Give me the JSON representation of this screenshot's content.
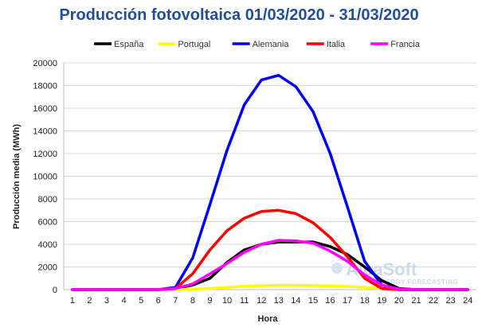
{
  "chart_data": {
    "type": "line",
    "title": "Producción fotovoltaica 01/03/2020 - 31/03/2020",
    "xlabel": "Hora",
    "ylabel": "Producción media (MWh)",
    "x": [
      1,
      2,
      3,
      4,
      5,
      6,
      7,
      8,
      9,
      10,
      11,
      12,
      13,
      14,
      15,
      16,
      17,
      18,
      19,
      20,
      21,
      22,
      23,
      24
    ],
    "ylim": [
      0,
      20000
    ],
    "yticks": [
      0,
      2000,
      4000,
      6000,
      8000,
      10000,
      12000,
      14000,
      16000,
      18000,
      20000
    ],
    "grid": true,
    "legend_position": "top",
    "series": [
      {
        "name": "España",
        "color": "#000000",
        "values": [
          0,
          0,
          0,
          0,
          0,
          0,
          100,
          400,
          1000,
          2400,
          3500,
          4000,
          4200,
          4200,
          4200,
          3800,
          3100,
          2000,
          800,
          100,
          0,
          0,
          0,
          0
        ]
      },
      {
        "name": "Portugal",
        "color": "#ffff00",
        "values": [
          0,
          0,
          0,
          0,
          0,
          0,
          10,
          40,
          100,
          200,
          300,
          350,
          380,
          380,
          360,
          330,
          280,
          200,
          80,
          10,
          0,
          0,
          0,
          0
        ]
      },
      {
        "name": "Alemania",
        "color": "#0000ff",
        "values": [
          0,
          0,
          0,
          0,
          0,
          0,
          200,
          2800,
          7500,
          12300,
          16300,
          18500,
          18900,
          17900,
          15700,
          12000,
          7300,
          2500,
          400,
          0,
          0,
          0,
          0,
          0
        ]
      },
      {
        "name": "Italia",
        "color": "#ff0000",
        "values": [
          0,
          0,
          0,
          0,
          0,
          0,
          100,
          1400,
          3500,
          5200,
          6300,
          6900,
          7000,
          6700,
          5900,
          4600,
          2900,
          1000,
          100,
          0,
          0,
          0,
          0,
          0
        ]
      },
      {
        "name": "Francia",
        "color": "#ff00ff",
        "values": [
          0,
          0,
          0,
          0,
          0,
          0,
          100,
          500,
          1400,
          2300,
          3300,
          4000,
          4350,
          4300,
          4100,
          3400,
          2500,
          1300,
          400,
          50,
          0,
          0,
          0,
          0
        ]
      }
    ]
  },
  "watermark": {
    "brand": "AleaSoft",
    "tagline": "ENERGY FORECASTING"
  }
}
